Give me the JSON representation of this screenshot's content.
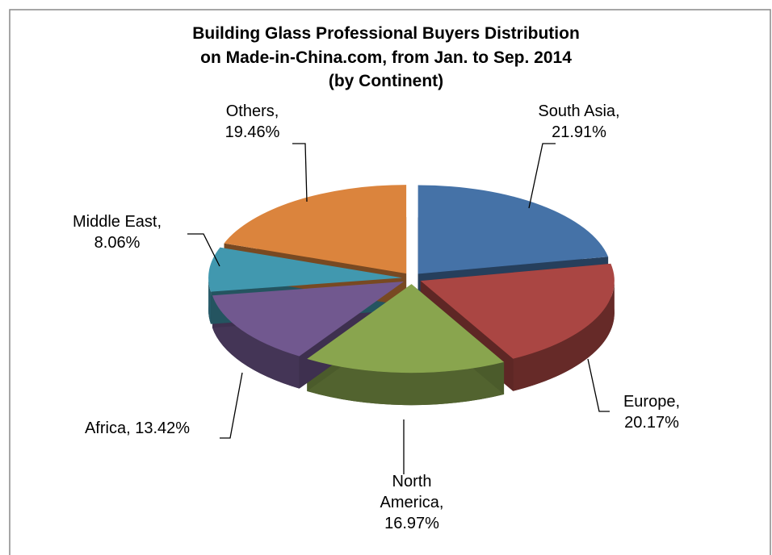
{
  "chart_data": {
    "type": "pie",
    "title": [
      "Building Glass Professional Buyers Distribution",
      "on Made-in-China.com, from Jan. to Sep. 2014",
      "(by Continent)"
    ],
    "categories": [
      "South Asia,",
      "Europe,",
      "North America,",
      "Africa,",
      "Middle East,",
      "Others,"
    ],
    "values": [
      21.91,
      20.17,
      16.97,
      13.42,
      8.06,
      19.46
    ],
    "value_labels": [
      "21.91%",
      "20.17%",
      "16.97%",
      "13.42%",
      "8.06%",
      "19.46%"
    ],
    "colors": [
      "#4572a7",
      "#aa4643",
      "#89a54e",
      "#71588f",
      "#4198af",
      "#db843d"
    ]
  }
}
